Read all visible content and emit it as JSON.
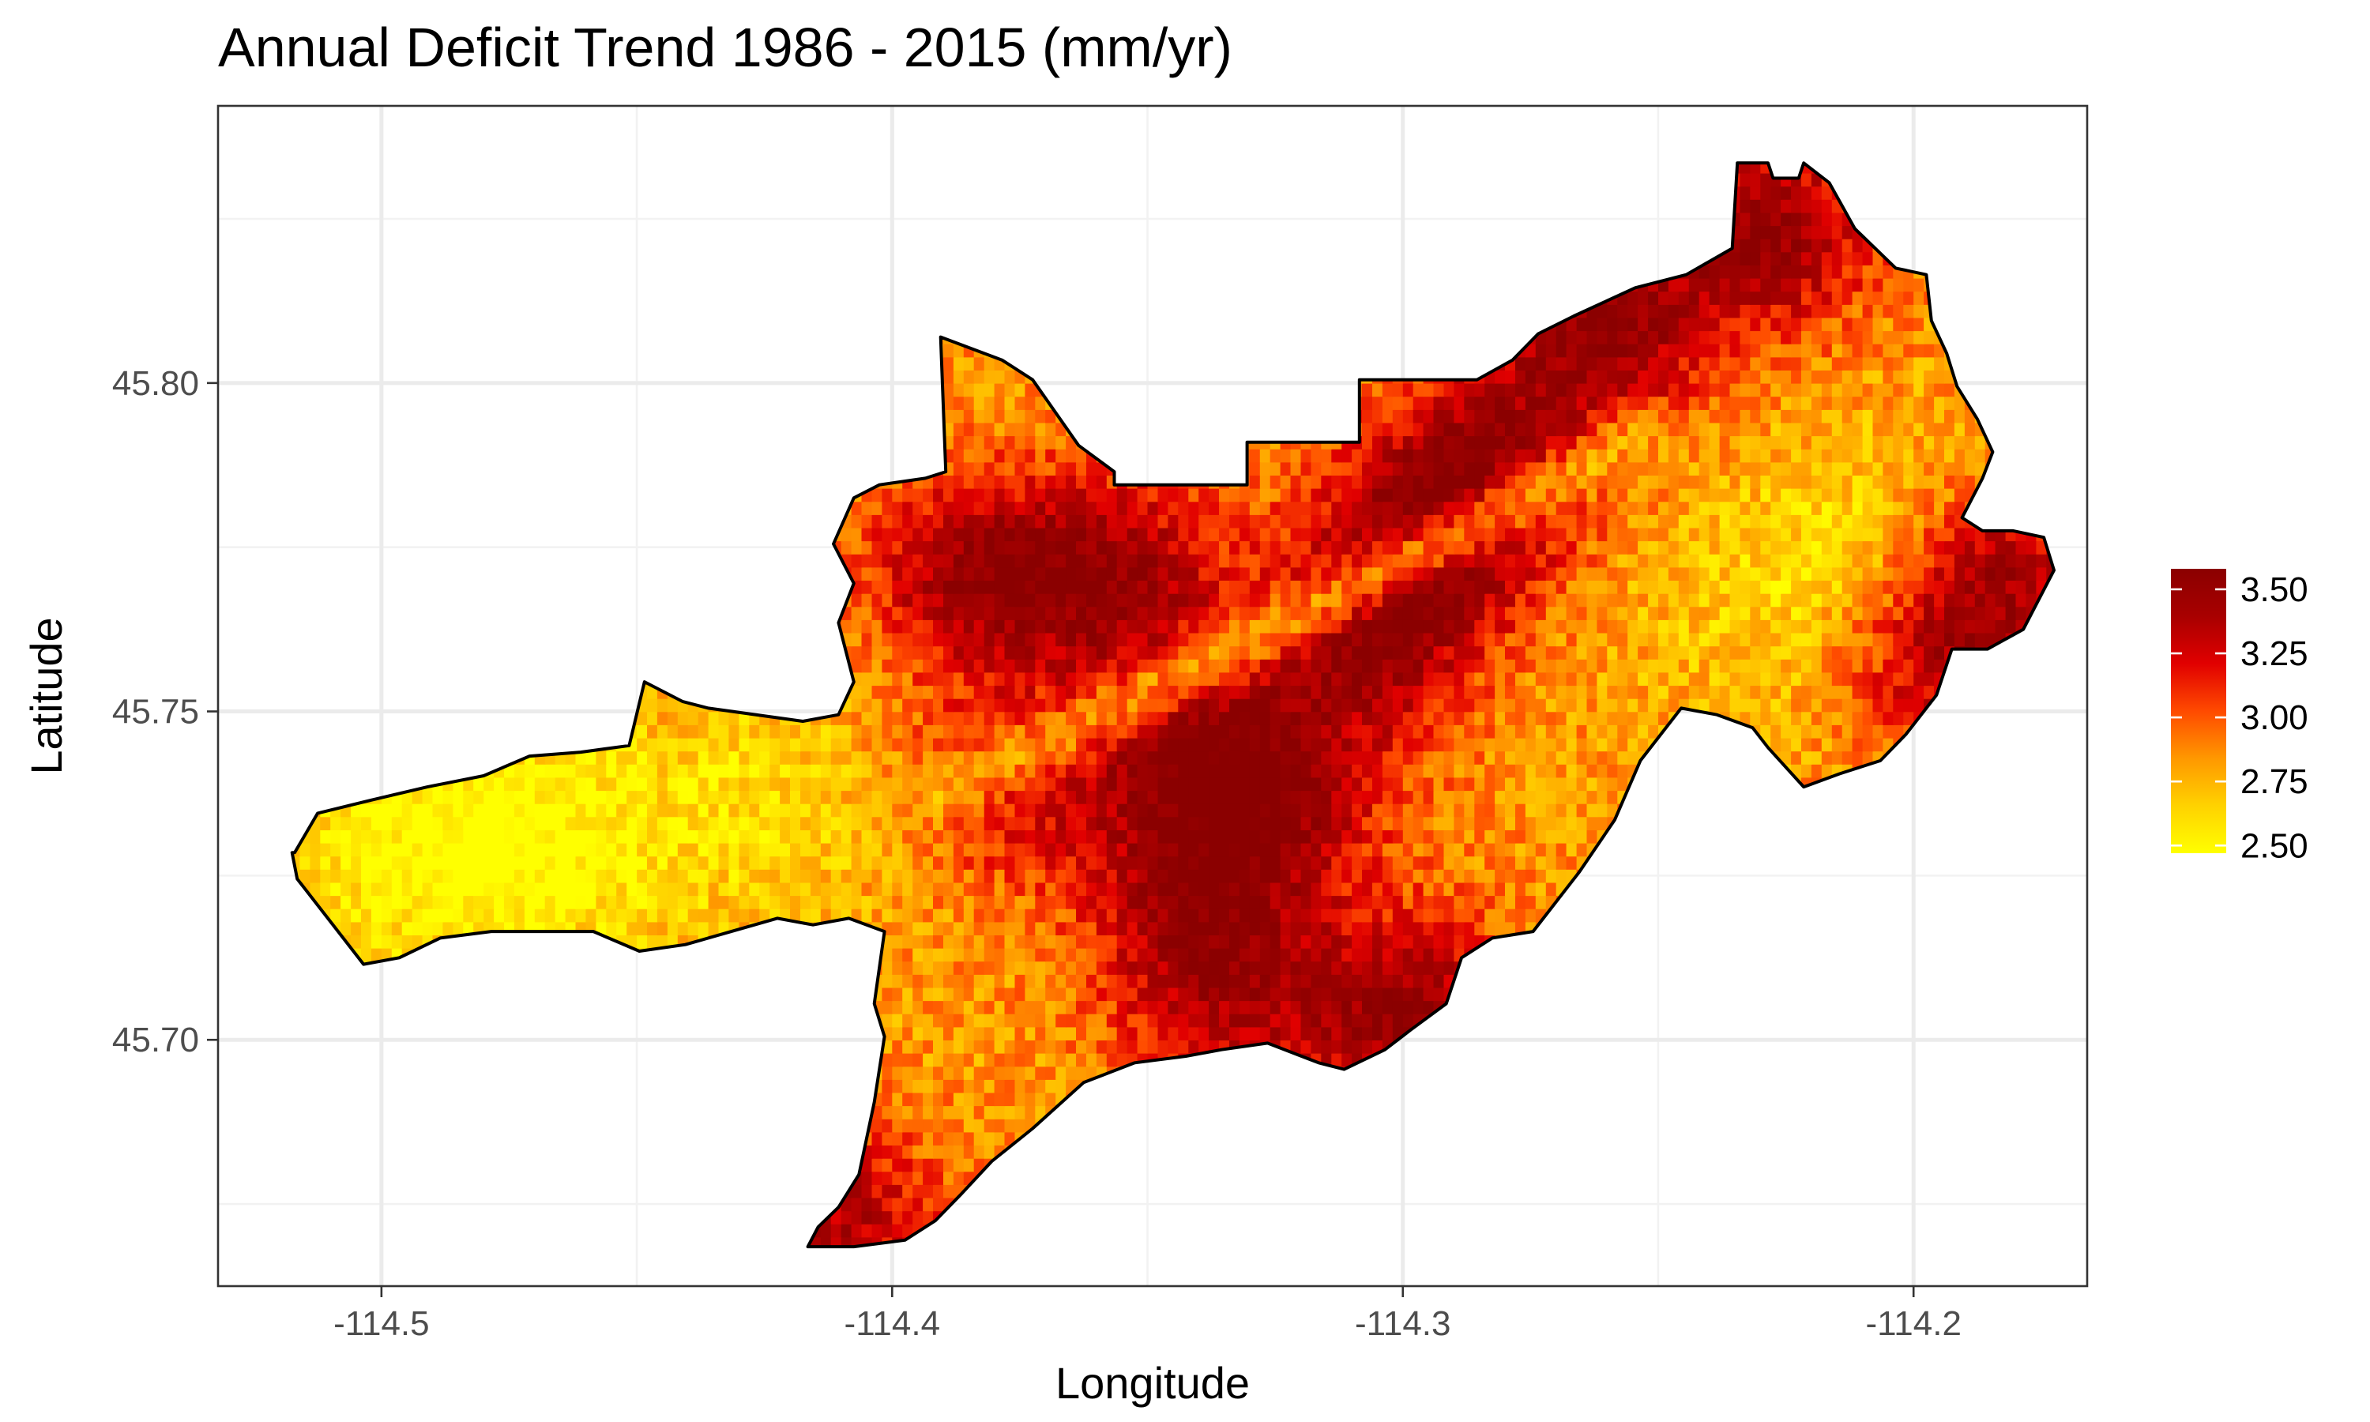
{
  "chart_data": {
    "type": "heatmap",
    "title": "Annual Deficit Trend 1986 - 2015 (mm/yr)",
    "xlabel": "Longitude",
    "ylabel": "Latitude",
    "xlim": [
      -114.532,
      -114.166
    ],
    "ylim": [
      45.6625,
      45.8422
    ],
    "x_ticks": [
      {
        "value": -114.5,
        "label": "-114.5"
      },
      {
        "value": -114.4,
        "label": "-114.4"
      },
      {
        "value": -114.3,
        "label": "-114.3"
      },
      {
        "value": -114.2,
        "label": "-114.2"
      }
    ],
    "y_ticks": [
      {
        "value": 45.7,
        "label": "45.70"
      },
      {
        "value": 45.75,
        "label": "45.75"
      },
      {
        "value": 45.8,
        "label": "45.80"
      }
    ],
    "x_minor": [
      -114.45,
      -114.35,
      -114.25
    ],
    "y_minor": [
      45.675,
      45.725,
      45.775,
      45.825
    ],
    "grid": true,
    "legend": {
      "position": "right",
      "breaks": [
        {
          "value": 2.5,
          "label": "2.50"
        },
        {
          "value": 2.75,
          "label": "2.75"
        },
        {
          "value": 3.0,
          "label": "3.00"
        },
        {
          "value": 3.25,
          "label": "3.25"
        },
        {
          "value": 3.5,
          "label": "3.50"
        }
      ],
      "range": [
        2.47,
        3.58
      ],
      "colors": [
        "#ffff00",
        "#ffd200",
        "#ff9800",
        "#ff4a00",
        "#e10000",
        "#a80000",
        "#8b0000"
      ]
    },
    "boundary": [
      [
        -114.517,
        45.7285
      ],
      [
        -114.5125,
        45.7345
      ],
      [
        -114.502,
        45.7365
      ],
      [
        -114.491,
        45.7385
      ],
      [
        -114.48,
        45.7402
      ],
      [
        -114.471,
        45.7432
      ],
      [
        -114.461,
        45.7438
      ],
      [
        -114.4515,
        45.7448
      ],
      [
        -114.4485,
        45.7545
      ],
      [
        -114.441,
        45.7515
      ],
      [
        -114.436,
        45.7505
      ],
      [
        -114.4175,
        45.7485
      ],
      [
        -114.4105,
        45.7495
      ],
      [
        -114.4075,
        45.7545
      ],
      [
        -114.4105,
        45.7635
      ],
      [
        -114.4075,
        45.7695
      ],
      [
        -114.4115,
        45.7755
      ],
      [
        -114.4075,
        45.7825
      ],
      [
        -114.4025,
        45.7845
      ],
      [
        -114.3935,
        45.7855
      ],
      [
        -114.3895,
        45.7865
      ],
      [
        -114.3905,
        45.807
      ],
      [
        -114.3785,
        45.8035
      ],
      [
        -114.3725,
        45.8005
      ],
      [
        -114.3635,
        45.7905
      ],
      [
        -114.3565,
        45.7865
      ],
      [
        -114.3565,
        45.7845
      ],
      [
        -114.3305,
        45.7845
      ],
      [
        -114.3305,
        45.791
      ],
      [
        -114.3085,
        45.791
      ],
      [
        -114.3085,
        45.8005
      ],
      [
        -114.2855,
        45.8005
      ],
      [
        -114.2785,
        45.8035
      ],
      [
        -114.2735,
        45.8075
      ],
      [
        -114.2665,
        45.8102
      ],
      [
        -114.2545,
        45.8145
      ],
      [
        -114.2445,
        45.8165
      ],
      [
        -114.2355,
        45.8205
      ],
      [
        -114.2345,
        45.8335
      ],
      [
        -114.2285,
        45.8335
      ],
      [
        -114.2275,
        45.8312
      ],
      [
        -114.2225,
        45.8312
      ],
      [
        -114.2215,
        45.8335
      ],
      [
        -114.2165,
        45.8305
      ],
      [
        -114.2115,
        45.8235
      ],
      [
        -114.2035,
        45.8175
      ],
      [
        -114.1975,
        45.8165
      ],
      [
        -114.1965,
        45.8095
      ],
      [
        -114.1935,
        45.8045
      ],
      [
        -114.1915,
        45.7995
      ],
      [
        -114.1875,
        45.7945
      ],
      [
        -114.1845,
        45.7895
      ],
      [
        -114.1865,
        45.7855
      ],
      [
        -114.1905,
        45.7795
      ],
      [
        -114.1865,
        45.7775
      ],
      [
        -114.1805,
        45.7775
      ],
      [
        -114.1745,
        45.7765
      ],
      [
        -114.1725,
        45.7715
      ],
      [
        -114.1785,
        45.7625
      ],
      [
        -114.1855,
        45.7595
      ],
      [
        -114.1925,
        45.7595
      ],
      [
        -114.1955,
        45.7525
      ],
      [
        -114.2015,
        45.7465
      ],
      [
        -114.2065,
        45.7425
      ],
      [
        -114.2145,
        45.7405
      ],
      [
        -114.2215,
        45.7385
      ],
      [
        -114.2285,
        45.7445
      ],
      [
        -114.2315,
        45.7475
      ],
      [
        -114.2385,
        45.7495
      ],
      [
        -114.2455,
        45.7505
      ],
      [
        -114.2535,
        45.7425
      ],
      [
        -114.2585,
        45.7335
      ],
      [
        -114.2655,
        45.7255
      ],
      [
        -114.2745,
        45.7165
      ],
      [
        -114.2825,
        45.7155
      ],
      [
        -114.2885,
        45.7125
      ],
      [
        -114.2915,
        45.7055
      ],
      [
        -114.2985,
        45.7015
      ],
      [
        -114.3035,
        45.6985
      ],
      [
        -114.3115,
        45.6955
      ],
      [
        -114.3165,
        45.6965
      ],
      [
        -114.3265,
        45.6995
      ],
      [
        -114.3355,
        45.6985
      ],
      [
        -114.3425,
        45.6975
      ],
      [
        -114.3525,
        45.6965
      ],
      [
        -114.3625,
        45.6935
      ],
      [
        -114.3725,
        45.6865
      ],
      [
        -114.3805,
        45.6815
      ],
      [
        -114.3865,
        45.6765
      ],
      [
        -114.3915,
        45.6725
      ],
      [
        -114.3975,
        45.6695
      ],
      [
        -114.4075,
        45.6685
      ],
      [
        -114.4165,
        45.6685
      ],
      [
        -114.4145,
        45.6715
      ],
      [
        -114.4105,
        45.6745
      ],
      [
        -114.4065,
        45.6795
      ],
      [
        -114.4035,
        45.6905
      ],
      [
        -114.4015,
        45.7005
      ],
      [
        -114.4035,
        45.7055
      ],
      [
        -114.4015,
        45.7165
      ],
      [
        -114.4085,
        45.7185
      ],
      [
        -114.4155,
        45.7175
      ],
      [
        -114.4225,
        45.7185
      ],
      [
        -114.4315,
        45.7165
      ],
      [
        -114.4405,
        45.7145
      ],
      [
        -114.4495,
        45.7135
      ],
      [
        -114.4585,
        45.7165
      ],
      [
        -114.4665,
        45.7165
      ],
      [
        -114.4785,
        45.7165
      ],
      [
        -114.4885,
        45.7155
      ],
      [
        -114.4965,
        45.7125
      ],
      [
        -114.5035,
        45.7115
      ],
      [
        -114.5105,
        45.7185
      ],
      [
        -114.5165,
        45.7245
      ],
      [
        -114.5175,
        45.7285
      ]
    ],
    "cells": {
      "resolution": 0.002,
      "base": 2.84,
      "hotspots": [
        {
          "lon": -114.385,
          "lat": 45.77,
          "value": 3.45
        },
        {
          "lon": -114.357,
          "lat": 45.77,
          "value": 3.42
        },
        {
          "lon": -114.295,
          "lat": 45.775,
          "value": 3.5
        },
        {
          "lon": -114.31,
          "lat": 45.76,
          "value": 3.45
        },
        {
          "lon": -114.262,
          "lat": 45.808,
          "value": 3.52
        },
        {
          "lon": -114.283,
          "lat": 45.788,
          "value": 3.35
        },
        {
          "lon": -114.325,
          "lat": 45.736,
          "value": 3.38
        },
        {
          "lon": -114.343,
          "lat": 45.722,
          "value": 3.32
        },
        {
          "lon": -114.3,
          "lat": 45.703,
          "value": 3.5
        },
        {
          "lon": -114.336,
          "lat": 45.706,
          "value": 3.3
        },
        {
          "lon": -114.378,
          "lat": 45.738,
          "value": 3.22
        },
        {
          "lon": -114.345,
          "lat": 45.745,
          "value": 3.35
        },
        {
          "lon": -114.229,
          "lat": 45.822,
          "value": 3.48
        },
        {
          "lon": -114.183,
          "lat": 45.77,
          "value": 3.38
        },
        {
          "lon": -114.196,
          "lat": 45.756,
          "value": 3.32
        },
        {
          "lon": -114.412,
          "lat": 45.672,
          "value": 3.38
        }
      ],
      "coolspots": [
        {
          "lon": -114.47,
          "lat": 45.728,
          "value": 2.5
        },
        {
          "lon": -114.5,
          "lat": 45.728,
          "value": 2.58
        },
        {
          "lon": -114.425,
          "lat": 45.735,
          "value": 2.62
        },
        {
          "lon": -114.21,
          "lat": 45.775,
          "value": 2.62
        },
        {
          "lon": -114.225,
          "lat": 45.76,
          "value": 2.72
        },
        {
          "lon": -114.255,
          "lat": 45.765,
          "value": 2.8
        },
        {
          "lon": -114.4,
          "lat": 45.69,
          "value": 2.82
        }
      ],
      "ridge": {
        "from": [
          -114.255,
          45.79
        ],
        "to": [
          -114.395,
          45.735
        ],
        "value": 2.74
      }
    }
  }
}
